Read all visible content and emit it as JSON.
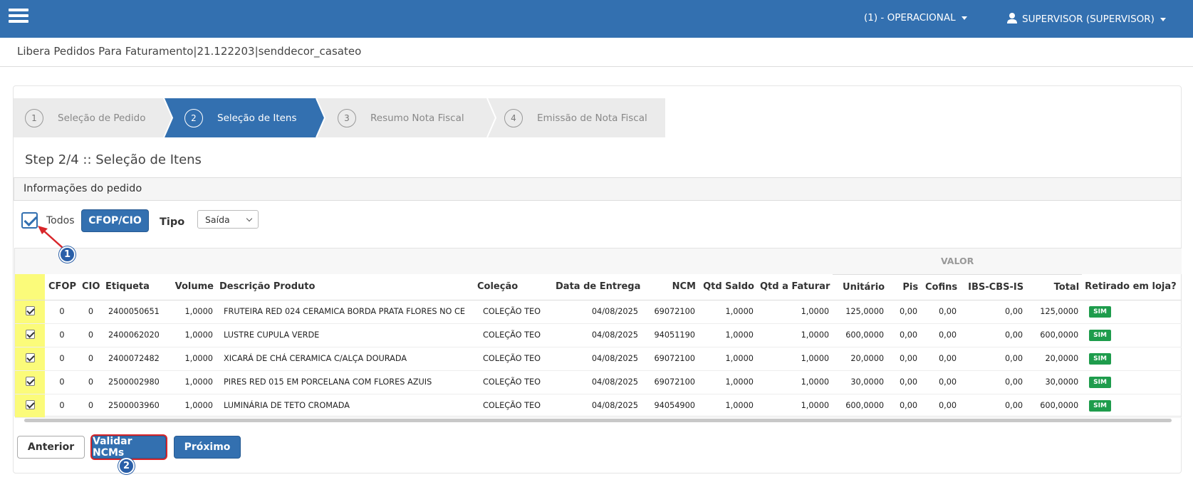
{
  "header": {
    "context_menu": "(1) - OPERACIONAL",
    "user_menu": "SUPERVISOR (SUPERVISOR)"
  },
  "page_title": "Libera Pedidos Para Faturamento|21.122203|senddecor_casateo",
  "steps": [
    {
      "number": "1",
      "label": "Seleção de Pedido"
    },
    {
      "number": "2",
      "label": "Seleção de Itens"
    },
    {
      "number": "3",
      "label": "Resumo Nota Fiscal"
    },
    {
      "number": "4",
      "label": "Emissão de Nota Fiscal"
    }
  ],
  "step_heading": "Step 2/4 :: Seleção de Itens",
  "panel_title": "Informações do pedido",
  "filters": {
    "all_label": "Todos",
    "cfop_button": "CFOP/CIO",
    "tipo_label": "Tipo",
    "tipo_value": "Saída"
  },
  "table": {
    "group_header": "VALOR",
    "columns": [
      "CFOP",
      "CIO",
      "Etiqueta",
      "Volume",
      "Descrição Produto",
      "Coleção",
      "Data de Entrega",
      "NCM",
      "Qtd Saldo",
      "Qtd a Faturar",
      "Unitário",
      "Pis",
      "Cofins",
      "IBS-CBS-IS",
      "Total",
      "Retirado em loja?"
    ],
    "rows": [
      [
        "0",
        "0",
        "2400050651",
        "1,0000",
        "FRUTEIRA RED 024 CERAMICA BORDA PRATA FLORES NO CE",
        "COLEÇÃO TEO",
        "04/08/2025",
        "69072100",
        "1,0000",
        "1,0000",
        "125,0000",
        "0,00",
        "0,00",
        "0,00",
        "125,0000",
        "SIM"
      ],
      [
        "0",
        "0",
        "2400062020",
        "1,0000",
        "LUSTRE CUPULA VERDE",
        "COLEÇÃO TEO",
        "04/08/2025",
        "94051190",
        "1,0000",
        "1,0000",
        "600,0000",
        "0,00",
        "0,00",
        "0,00",
        "600,0000",
        "SIM"
      ],
      [
        "0",
        "0",
        "2400072482",
        "1,0000",
        "XICARÁ DE CHÁ CERAMICA C/ALÇA DOURADA",
        "COLEÇÃO TEO",
        "04/08/2025",
        "69072100",
        "1,0000",
        "1,0000",
        "20,0000",
        "0,00",
        "0,00",
        "0,00",
        "20,0000",
        "SIM"
      ],
      [
        "0",
        "0",
        "2500002980",
        "1,0000",
        "PIRES RED 015 EM PORCELANA COM FLORES AZUIS",
        "COLEÇÃO TEO",
        "04/08/2025",
        "69072100",
        "1,0000",
        "1,0000",
        "30,0000",
        "0,00",
        "0,00",
        "0,00",
        "30,0000",
        "SIM"
      ],
      [
        "0",
        "0",
        "2500003960",
        "1,0000",
        "LUMINÁRIA DE TETO CROMADA",
        "COLEÇÃO TEO",
        "04/08/2025",
        "94054900",
        "1,0000",
        "1,0000",
        "600,0000",
        "0,00",
        "0,00",
        "0,00",
        "600,0000",
        "SIM"
      ]
    ]
  },
  "buttons": {
    "previous": "Anterior",
    "validate": "Validar NCMs",
    "next": "Próximo"
  },
  "annotations": [
    "1",
    "2"
  ]
}
